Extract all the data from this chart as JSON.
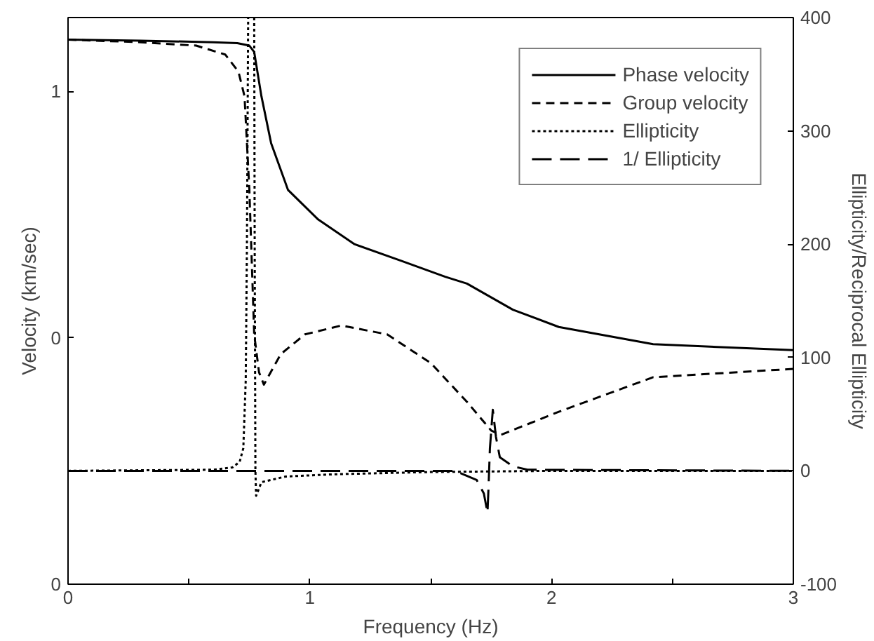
{
  "chart_data": {
    "type": "line",
    "xlabel": "Frequency (Hz)",
    "ylabel": "Velocity (km/sec)",
    "y2label": "Ellipticity/Reciprocal Ellipticity",
    "xlim": [
      0,
      3
    ],
    "xticks": [
      0,
      {
        "value": 0.5,
        "label": null
      },
      1,
      {
        "value": 1.5,
        "label": null
      },
      2,
      {
        "value": 2.5,
        "label": null
      },
      3
    ],
    "ylim": [
      0,
      1.15
    ],
    "yticks": [
      0,
      {
        "value": 0.5,
        "label": "0"
      },
      1
    ],
    "y2lim": [
      -100,
      400
    ],
    "y2ticks": [
      -100,
      0,
      100,
      200,
      300,
      400
    ],
    "legend": "top right",
    "grid": false,
    "series": [
      {
        "name": "Phase velocity",
        "color": "#000000",
        "line_style": "solid",
        "x": [
          0,
          0.3,
          0.6,
          0.7,
          0.75,
          0.77,
          0.8,
          0.84,
          0.91,
          1.035,
          1.185,
          1.38,
          1.56,
          1.65,
          1.84,
          2.03,
          2.42,
          3.0
        ],
        "values": [
          1.105,
          1.103,
          1.1,
          1.098,
          1.093,
          1.08,
          0.99,
          0.895,
          0.8,
          0.74,
          0.69,
          0.656,
          0.624,
          0.61,
          0.557,
          0.522,
          0.487,
          0.475
        ]
      },
      {
        "name": "Group velocity",
        "color": "#000000",
        "line_style": "dashed",
        "x": [
          0,
          0.3,
          0.53,
          0.65,
          0.705,
          0.73,
          0.75,
          0.77,
          0.79,
          0.81,
          0.88,
          0.98,
          1.13,
          1.32,
          1.5,
          1.65,
          1.75,
          1.79,
          2.03,
          2.42,
          3.0
        ],
        "values": [
          1.105,
          1.1,
          1.093,
          1.075,
          1.04,
          0.99,
          0.8,
          0.507,
          0.43,
          0.405,
          0.467,
          0.507,
          0.525,
          0.507,
          0.449,
          0.37,
          0.312,
          0.303,
          0.35,
          0.42,
          0.437
        ]
      },
      {
        "name": "Ellipticity",
        "color": "#000000",
        "line_style": "dotted",
        "axis": "y2",
        "x": [
          0,
          0.6,
          0.68,
          0.71,
          0.725,
          0.735,
          0.74,
          0.745,
          0.76,
          0.77,
          0.772,
          0.775,
          0.778,
          0.8,
          0.9,
          1.1,
          1.5,
          2.0,
          3.0
        ],
        "values": [
          0,
          1,
          3,
          8,
          20,
          80,
          200,
          400,
          null,
          400,
          200,
          0,
          -22,
          -10,
          -5,
          -3,
          -1,
          0,
          0
        ]
      },
      {
        "name": "1/ Ellipticity",
        "color": "#000000",
        "line_style": "longdash",
        "axis": "y2",
        "x": [
          0,
          0.75,
          0.8,
          1.6,
          1.69,
          1.72,
          1.735,
          1.74,
          1.745,
          1.757,
          1.77,
          1.786,
          1.84,
          1.9,
          3.0
        ],
        "values": [
          0,
          0,
          0,
          0,
          -8,
          -20,
          -37,
          -10,
          20,
          54,
          30,
          12,
          4,
          1,
          0
        ]
      }
    ]
  }
}
